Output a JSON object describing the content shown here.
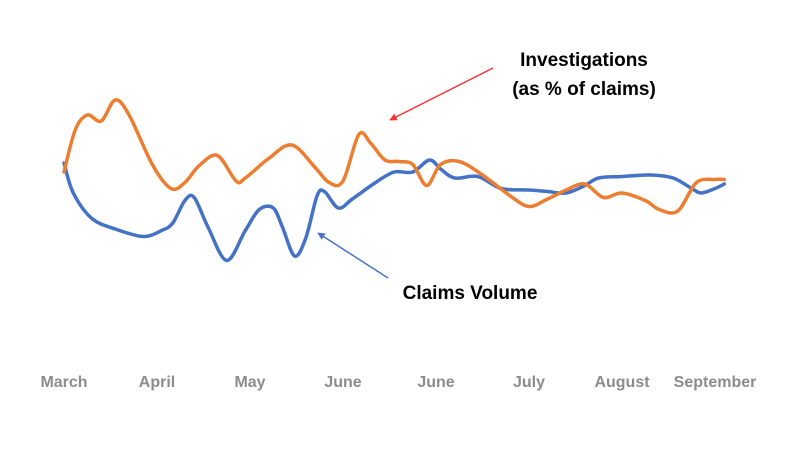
{
  "chart_data": {
    "type": "line",
    "categories": [
      "March",
      "April",
      "May",
      "June",
      "June",
      "July",
      "August",
      "September"
    ],
    "x": [
      0,
      1,
      2,
      3,
      4,
      5,
      6,
      7
    ],
    "series": [
      {
        "color": "#4472c4",
        "points": [
          [
            0.0,
            68
          ],
          [
            0.1,
            48
          ],
          [
            0.3,
            31
          ],
          [
            0.55,
            24
          ],
          [
            0.85,
            19
          ],
          [
            1.05,
            23
          ],
          [
            1.17,
            28
          ],
          [
            1.3,
            43
          ],
          [
            1.4,
            45
          ],
          [
            1.55,
            25
          ],
          [
            1.75,
            3
          ],
          [
            1.95,
            23
          ],
          [
            2.1,
            37
          ],
          [
            2.25,
            38
          ],
          [
            2.35,
            25
          ],
          [
            2.48,
            6
          ],
          [
            2.6,
            18
          ],
          [
            2.72,
            46
          ],
          [
            2.8,
            49
          ],
          [
            2.95,
            38
          ],
          [
            3.1,
            44
          ],
          [
            3.35,
            55
          ],
          [
            3.55,
            62
          ],
          [
            3.75,
            62
          ],
          [
            3.93,
            70
          ],
          [
            4.05,
            64
          ],
          [
            4.2,
            58
          ],
          [
            4.45,
            59
          ],
          [
            4.7,
            51
          ],
          [
            5.0,
            50
          ],
          [
            5.2,
            49
          ],
          [
            5.4,
            48
          ],
          [
            5.6,
            53
          ],
          [
            5.75,
            58
          ],
          [
            6.0,
            59
          ],
          [
            6.3,
            60
          ],
          [
            6.55,
            58
          ],
          [
            6.75,
            51
          ],
          [
            6.85,
            48
          ],
          [
            7.0,
            51
          ],
          [
            7.1,
            54
          ]
        ]
      },
      {
        "color": "#ed7d31",
        "points": [
          [
            0.0,
            62
          ],
          [
            0.12,
            90
          ],
          [
            0.25,
            100
          ],
          [
            0.4,
            96
          ],
          [
            0.55,
            110
          ],
          [
            0.7,
            100
          ],
          [
            0.95,
            67
          ],
          [
            1.15,
            51
          ],
          [
            1.3,
            55
          ],
          [
            1.45,
            66
          ],
          [
            1.65,
            73
          ],
          [
            1.85,
            56
          ],
          [
            1.95,
            58
          ],
          [
            2.2,
            71
          ],
          [
            2.45,
            80
          ],
          [
            2.7,
            65
          ],
          [
            2.85,
            55
          ],
          [
            3.0,
            56
          ],
          [
            3.17,
            87
          ],
          [
            3.3,
            81
          ],
          [
            3.45,
            70
          ],
          [
            3.6,
            69
          ],
          [
            3.75,
            67
          ],
          [
            3.9,
            53
          ],
          [
            4.05,
            67
          ],
          [
            4.25,
            69
          ],
          [
            4.5,
            60
          ],
          [
            4.8,
            46
          ],
          [
            5.0,
            39
          ],
          [
            5.2,
            44
          ],
          [
            5.4,
            50
          ],
          [
            5.6,
            54
          ],
          [
            5.8,
            45
          ],
          [
            6.0,
            48
          ],
          [
            6.25,
            43
          ],
          [
            6.4,
            37
          ],
          [
            6.6,
            36
          ],
          [
            6.8,
            55
          ],
          [
            7.0,
            57
          ],
          [
            7.1,
            57
          ]
        ]
      }
    ],
    "annotations": [
      {
        "lines": [
          "Investigations",
          "(as % of claims)"
        ],
        "color": "#ff3030"
      },
      {
        "lines": [
          "Claims Volume"
        ],
        "color": "#4472c4"
      }
    ]
  }
}
